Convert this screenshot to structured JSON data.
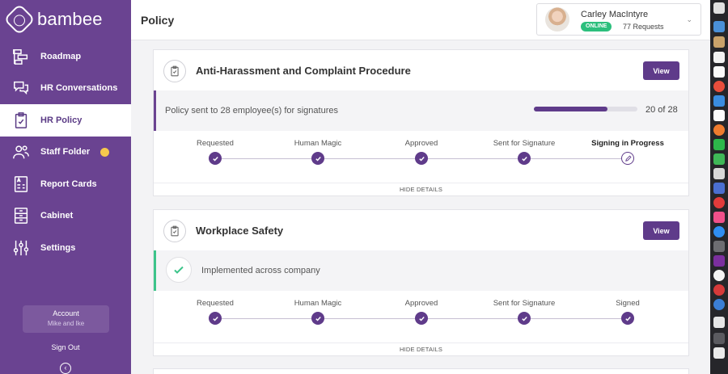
{
  "brand": {
    "name": "bambee"
  },
  "sidebar": {
    "items": [
      {
        "label": "Roadmap",
        "icon": "roadmap-icon"
      },
      {
        "label": "HR Conversations",
        "icon": "chat-icon"
      },
      {
        "label": "HR Policy",
        "icon": "clipboard-icon",
        "active": true
      },
      {
        "label": "Staff Folder",
        "icon": "people-icon",
        "badge_color": "#f5c84c"
      },
      {
        "label": "Report Cards",
        "icon": "report-card-icon"
      },
      {
        "label": "Cabinet",
        "icon": "cabinet-icon"
      },
      {
        "label": "Settings",
        "icon": "sliders-icon"
      }
    ],
    "account": {
      "label": "Account",
      "name": "Mike and Ike"
    },
    "signout": "Sign Out"
  },
  "header": {
    "title": "Policy",
    "user": {
      "name": "Carley MacIntyre",
      "status": "ONLINE",
      "requests": "77 Requests"
    }
  },
  "policies": [
    {
      "title": "Anti-Harassment and Complaint Procedure",
      "view_label": "View",
      "status_text": "Policy sent to 28 employee(s) for signatures",
      "progress": {
        "value": 20,
        "total": 28,
        "label": "20 of 28"
      },
      "steps": [
        "Requested",
        "Human Magic",
        "Approved",
        "Sent for Signature",
        "Signing in Progress"
      ],
      "current_step": 4,
      "hide_label": "HIDE DETAILS"
    },
    {
      "title": "Workplace Safety",
      "view_label": "View",
      "status_text": "Implemented across company",
      "steps": [
        "Requested",
        "Human Magic",
        "Approved",
        "Sent for Signature",
        "Signed"
      ],
      "current_step": -1,
      "hide_label": "HIDE DETAILS"
    }
  ],
  "colors": {
    "sidebar": "#6a4391",
    "accent": "#5f3b8a",
    "online": "#2cbf7d",
    "success": "#3cc48a"
  }
}
